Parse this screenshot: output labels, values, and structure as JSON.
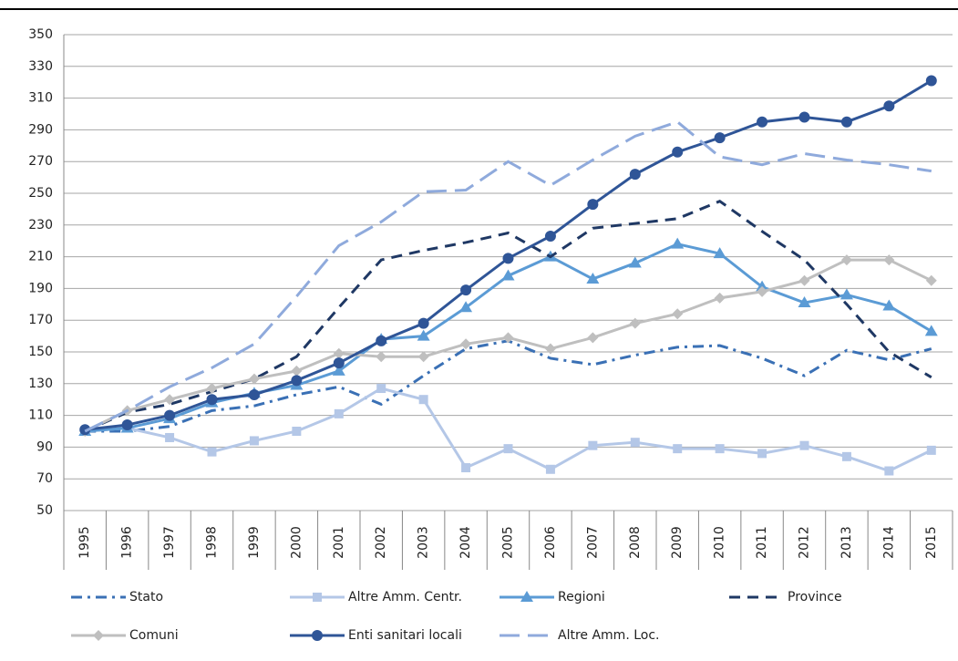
{
  "chart_data": {
    "type": "line",
    "categories": [
      "1995",
      "1996",
      "1997",
      "1998",
      "1999",
      "2000",
      "2001",
      "2002",
      "2003",
      "2004",
      "2005",
      "2006",
      "2007",
      "2008",
      "2009",
      "2010",
      "2011",
      "2012",
      "2013",
      "2014",
      "2015"
    ],
    "ylim": [
      50,
      350
    ],
    "yticks": [
      50,
      70,
      90,
      110,
      130,
      150,
      170,
      190,
      210,
      230,
      250,
      270,
      290,
      310,
      330,
      350
    ],
    "grid": true,
    "series": [
      {
        "name": "Stato",
        "color": "#3a70b5",
        "dash": "dash-dot",
        "marker": "none",
        "values": [
          100,
          100,
          103,
          113,
          116,
          123,
          128,
          117,
          135,
          152,
          157,
          146,
          142,
          148,
          153,
          154,
          146,
          135,
          151,
          145,
          152
        ]
      },
      {
        "name": "Altre Amm. Centr.",
        "color": "#b4c7e7",
        "dash": "solid",
        "marker": "square",
        "values": [
          100,
          102,
          96,
          87,
          94,
          100,
          111,
          127,
          120,
          77,
          89,
          76,
          91,
          93,
          89,
          89,
          86,
          91,
          84,
          75,
          88
        ]
      },
      {
        "name": "Regioni",
        "color": "#5b9bd5",
        "dash": "solid",
        "marker": "triangle",
        "values": [
          100,
          102,
          108,
          118,
          124,
          129,
          138,
          158,
          160,
          178,
          198,
          210,
          196,
          206,
          218,
          212,
          191,
          181,
          186,
          179,
          163
        ]
      },
      {
        "name": "Province",
        "color": "#1f3864",
        "dash": "dash",
        "marker": "none",
        "values": [
          100,
          112,
          117,
          125,
          133,
          147,
          178,
          208,
          214,
          219,
          225,
          210,
          228,
          231,
          234,
          245,
          226,
          208,
          180,
          150,
          134
        ]
      },
      {
        "name": "Comuni",
        "color": "#bfbfbf",
        "dash": "solid",
        "marker": "diamond",
        "values": [
          100,
          113,
          120,
          127,
          133,
          138,
          149,
          147,
          147,
          155,
          159,
          152,
          159,
          168,
          174,
          184,
          188,
          195,
          208,
          208,
          195
        ]
      },
      {
        "name": "Enti sanitari locali",
        "color": "#2f5597",
        "dash": "solid",
        "marker": "circle",
        "values": [
          101,
          104,
          110,
          120,
          123,
          132,
          143,
          157,
          168,
          189,
          209,
          223,
          243,
          262,
          276,
          285,
          295,
          298,
          295,
          305,
          321
        ]
      },
      {
        "name": "Altre Amm. Loc.",
        "color": "#8faadc",
        "dash": "long-dash",
        "marker": "none",
        "values": [
          100,
          113,
          128,
          140,
          155,
          185,
          217,
          232,
          251,
          252,
          270,
          255,
          271,
          286,
          295,
          273,
          268,
          275,
          271,
          268,
          264
        ]
      }
    ]
  }
}
